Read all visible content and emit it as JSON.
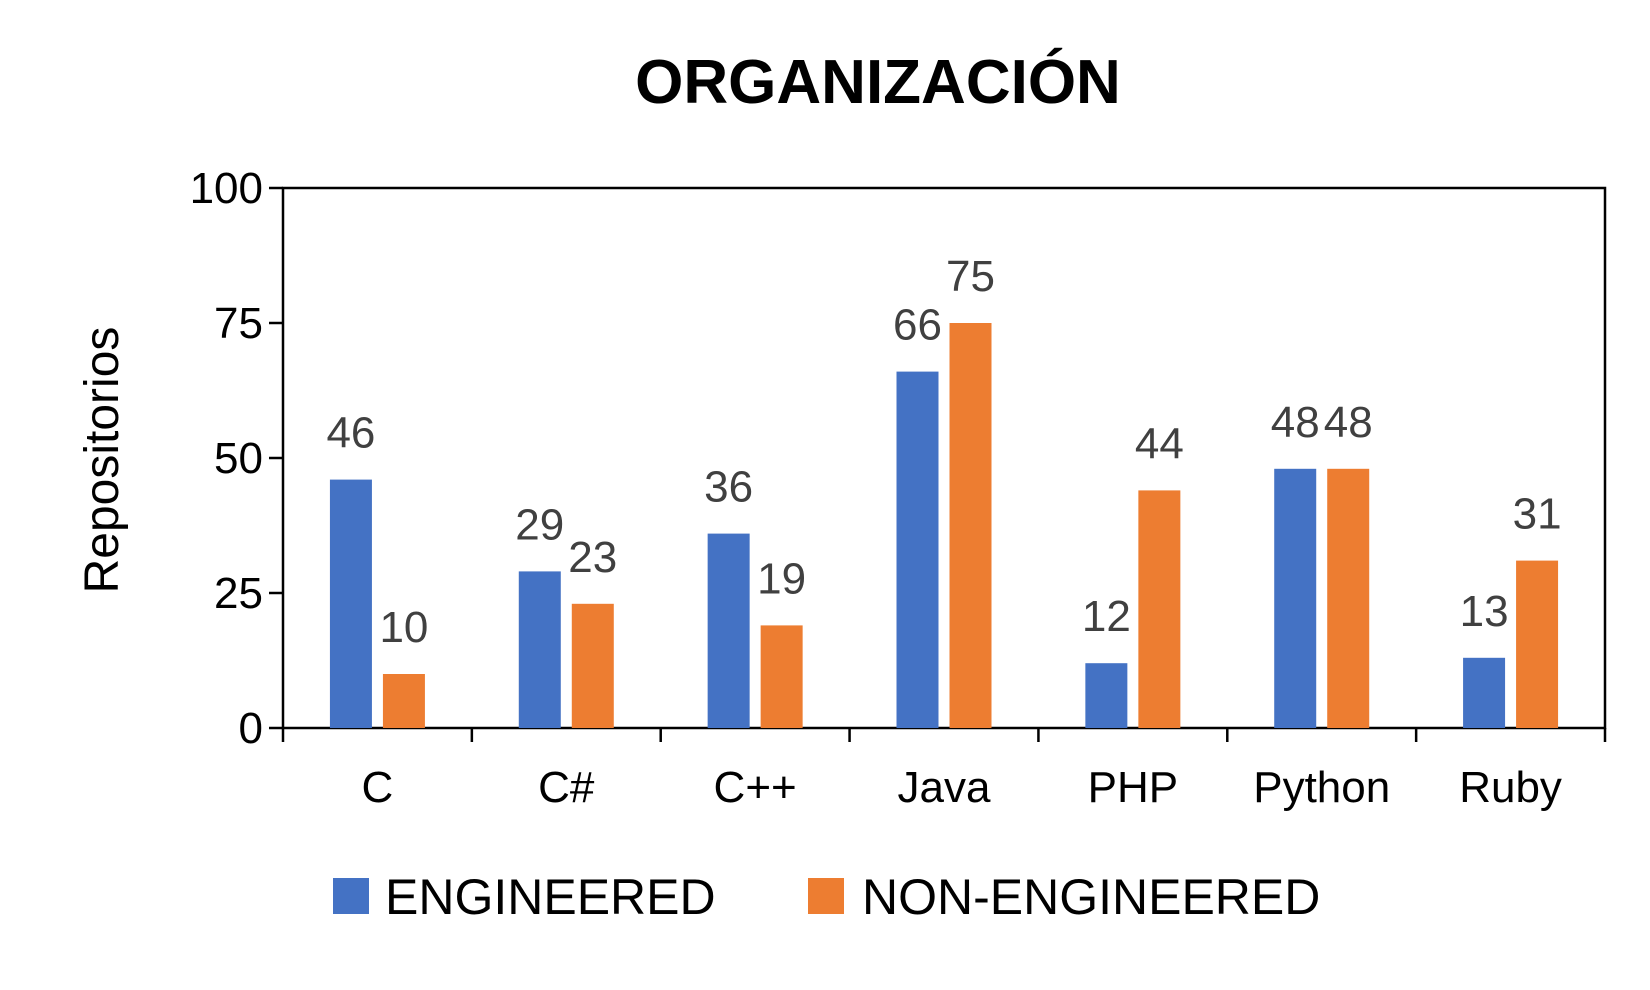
{
  "chart_data": {
    "type": "bar",
    "title": "ORGANIZACIÓN",
    "xlabel": "",
    "ylabel": "Repositorios",
    "ylim": [
      0,
      100
    ],
    "yticks": [
      "0",
      "25",
      "50",
      "75",
      "100"
    ],
    "categories": [
      "C",
      "C#",
      "C++",
      "Java",
      "PHP",
      "Python",
      "Ruby"
    ],
    "series": [
      {
        "name": "ENGINEERED",
        "color": "#4472C4",
        "values": [
          46,
          29,
          36,
          66,
          12,
          48,
          13
        ]
      },
      {
        "name": "NON-ENGINEERED",
        "color": "#ED7D31",
        "values": [
          10,
          23,
          19,
          75,
          44,
          48,
          31
        ]
      }
    ],
    "data_labels": true,
    "grid": false,
    "legend": "bottom"
  }
}
